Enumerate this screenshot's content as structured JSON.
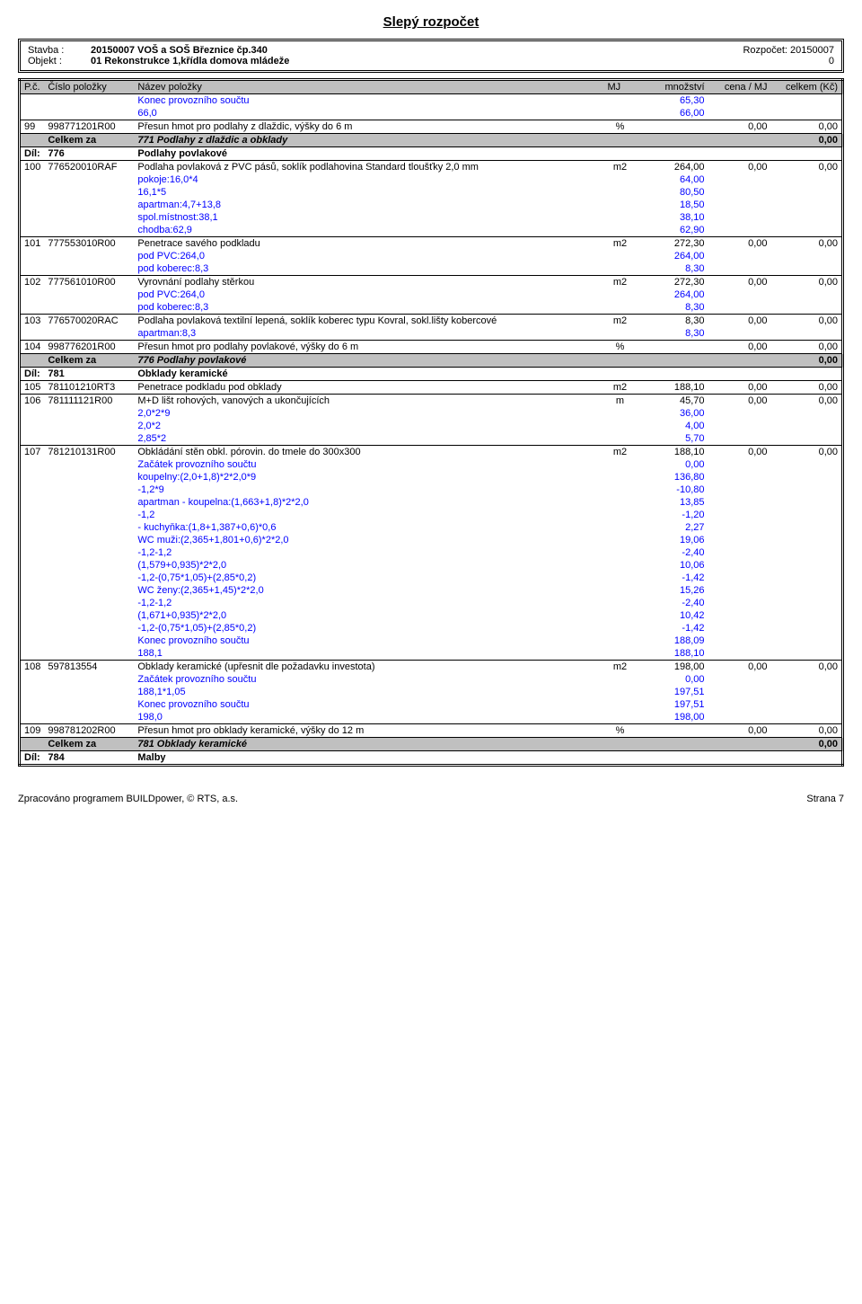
{
  "doc": {
    "title": "Slepý rozpočet",
    "stavba_label": "Stavba :",
    "objekt_label": "Objekt :",
    "stavba": "20150007 VOŠ a SOŠ Březnice čp.340",
    "objekt": "01 Rekonstrukce 1,křídla domova mládeže",
    "rozpocet_label": "Rozpočet:",
    "rozpocet": "20150007",
    "objekt_right": "0"
  },
  "columns": {
    "pc": "P.č.",
    "code": "Číslo položky",
    "name": "Název položky",
    "mj": "MJ",
    "qty": "množství",
    "unit": "cena / MJ",
    "total": "celkem (Kč)"
  },
  "rows": [
    {
      "t": "calc",
      "desc": "Konec provozního součtu",
      "qty": "65,30"
    },
    {
      "t": "calc",
      "desc": "66,0",
      "qty": "66,00"
    },
    {
      "t": "item",
      "pc": "99",
      "code": "998771201R00",
      "name": "Přesun hmot pro podlahy z dlaždic, výšky do 6 m",
      "mj": "%",
      "qty": "",
      "unit": "0,00",
      "total": "0,00"
    },
    {
      "t": "section",
      "label": "Celkem za",
      "name": "771 Podlahy z dlaždic a obklady",
      "total": "0,00"
    },
    {
      "t": "dil",
      "label": "Díl:",
      "code": "776",
      "name": "Podlahy povlakové"
    },
    {
      "t": "item",
      "pc": "100",
      "code": "776520010RAF",
      "name": "Podlaha povlaková z PVC pásů, soklík podlahovina Standard tloušťky 2,0 mm",
      "mj": "m2",
      "qty": "264,00",
      "unit": "0,00",
      "total": "0,00"
    },
    {
      "t": "calc",
      "desc": "pokoje:16,0*4",
      "qty": "64,00"
    },
    {
      "t": "calc",
      "desc": "16,1*5",
      "qty": "80,50"
    },
    {
      "t": "calc",
      "desc": "apartman:4,7+13,8",
      "qty": "18,50"
    },
    {
      "t": "calc",
      "desc": "spol.místnost:38,1",
      "qty": "38,10"
    },
    {
      "t": "calc",
      "desc": "chodba:62,9",
      "qty": "62,90"
    },
    {
      "t": "item",
      "pc": "101",
      "code": "777553010R00",
      "name": "Penetrace savého podkladu",
      "mj": "m2",
      "qty": "272,30",
      "unit": "0,00",
      "total": "0,00"
    },
    {
      "t": "calc",
      "desc": "pod PVC:264,0",
      "qty": "264,00"
    },
    {
      "t": "calc",
      "desc": "pod koberec:8,3",
      "qty": "8,30"
    },
    {
      "t": "item",
      "pc": "102",
      "code": "777561010R00",
      "name": "Vyrovnání podlahy stěrkou",
      "mj": "m2",
      "qty": "272,30",
      "unit": "0,00",
      "total": "0,00"
    },
    {
      "t": "calc",
      "desc": "pod PVC:264,0",
      "qty": "264,00"
    },
    {
      "t": "calc",
      "desc": "pod koberec:8,3",
      "qty": "8,30"
    },
    {
      "t": "item",
      "pc": "103",
      "code": "776570020RAC",
      "name": "Podlaha povlaková textilní lepená, soklík koberec typu Kovral, sokl.lišty kobercové",
      "mj": "m2",
      "qty": "8,30",
      "unit": "0,00",
      "total": "0,00"
    },
    {
      "t": "calc",
      "desc": "apartman:8,3",
      "qty": "8,30"
    },
    {
      "t": "item",
      "pc": "104",
      "code": "998776201R00",
      "name": "Přesun hmot pro podlahy povlakové, výšky do 6 m",
      "mj": "%",
      "qty": "",
      "unit": "0,00",
      "total": "0,00"
    },
    {
      "t": "section",
      "label": "Celkem za",
      "name": "776 Podlahy povlakové",
      "total": "0,00"
    },
    {
      "t": "dil",
      "label": "Díl:",
      "code": "781",
      "name": "Obklady keramické"
    },
    {
      "t": "item",
      "pc": "105",
      "code": "781101210RT3",
      "name": "Penetrace podkladu pod obklady",
      "mj": "m2",
      "qty": "188,10",
      "unit": "0,00",
      "total": "0,00"
    },
    {
      "t": "item",
      "pc": "106",
      "code": "781111121R00",
      "name": "M+D lišt rohových, vanových a ukončujících",
      "mj": "m",
      "qty": "45,70",
      "unit": "0,00",
      "total": "0,00"
    },
    {
      "t": "calc",
      "desc": "2,0*2*9",
      "qty": "36,00"
    },
    {
      "t": "calc",
      "desc": "2,0*2",
      "qty": "4,00"
    },
    {
      "t": "calc",
      "desc": "2,85*2",
      "qty": "5,70"
    },
    {
      "t": "item",
      "pc": "107",
      "code": "781210131R00",
      "name": "Obkládání stěn obkl. pórovin. do tmele do 300x300",
      "mj": "m2",
      "qty": "188,10",
      "unit": "0,00",
      "total": "0,00"
    },
    {
      "t": "calc",
      "desc": "Začátek provozního součtu",
      "qty": "0,00"
    },
    {
      "t": "calc",
      "desc": "koupelny:(2,0+1,8)*2*2,0*9",
      "qty": "136,80"
    },
    {
      "t": "calc",
      "desc": "-1,2*9",
      "qty": "-10,80"
    },
    {
      "t": "calc",
      "desc": "apartman - koupelna:(1,663+1,8)*2*2,0",
      "qty": "13,85"
    },
    {
      "t": "calc",
      "desc": "-1,2",
      "qty": "-1,20"
    },
    {
      "t": "calc",
      "desc": "            - kuchyňka:(1,8+1,387+0,6)*0,6",
      "qty": "2,27"
    },
    {
      "t": "calc",
      "desc": "WC muži:(2,365+1,801+0,6)*2*2,0",
      "qty": "19,06"
    },
    {
      "t": "calc",
      "desc": "-1,2-1,2",
      "qty": "-2,40"
    },
    {
      "t": "calc",
      "desc": "(1,579+0,935)*2*2,0",
      "qty": "10,06"
    },
    {
      "t": "calc",
      "desc": "-1,2-(0,75*1,05)+(2,85*0,2)",
      "qty": "-1,42"
    },
    {
      "t": "calc",
      "desc": "WC ženy:(2,365+1,45)*2*2,0",
      "qty": "15,26"
    },
    {
      "t": "calc",
      "desc": "-1,2-1,2",
      "qty": "-2,40"
    },
    {
      "t": "calc",
      "desc": "(1,671+0,935)*2*2,0",
      "qty": "10,42"
    },
    {
      "t": "calc",
      "desc": "-1,2-(0,75*1,05)+(2,85*0,2)",
      "qty": "-1,42"
    },
    {
      "t": "calc",
      "desc": "Konec provozního součtu",
      "qty": "188,09"
    },
    {
      "t": "calc",
      "desc": "188,1",
      "qty": "188,10"
    },
    {
      "t": "item",
      "pc": "108",
      "code": "597813554",
      "name": "Obklady keramické (upřesnit dle požadavku investota)",
      "mj": "m2",
      "qty": "198,00",
      "unit": "0,00",
      "total": "0,00"
    },
    {
      "t": "calc",
      "desc": "Začátek provozního součtu",
      "qty": "0,00"
    },
    {
      "t": "calc",
      "desc": "188,1*1,05",
      "qty": "197,51"
    },
    {
      "t": "calc",
      "desc": "Konec provozního součtu",
      "qty": "197,51"
    },
    {
      "t": "calc",
      "desc": "198,0",
      "qty": "198,00"
    },
    {
      "t": "item",
      "pc": "109",
      "code": "998781202R00",
      "name": "Přesun hmot pro obklady keramické, výšky do 12 m",
      "mj": "%",
      "qty": "",
      "unit": "0,00",
      "total": "0,00"
    },
    {
      "t": "section",
      "label": "Celkem za",
      "name": "781 Obklady keramické",
      "total": "0,00"
    },
    {
      "t": "dil",
      "label": "Díl:",
      "code": "784",
      "name": "Malby"
    }
  ],
  "footer": {
    "left": "Zpracováno programem BUILDpower, © RTS, a.s.",
    "right": "Strana 7"
  },
  "style": {
    "header_bg": "#c0c0c0",
    "calc_color": "#0000ff",
    "font_size_body": 11,
    "font_size_title": 15
  }
}
